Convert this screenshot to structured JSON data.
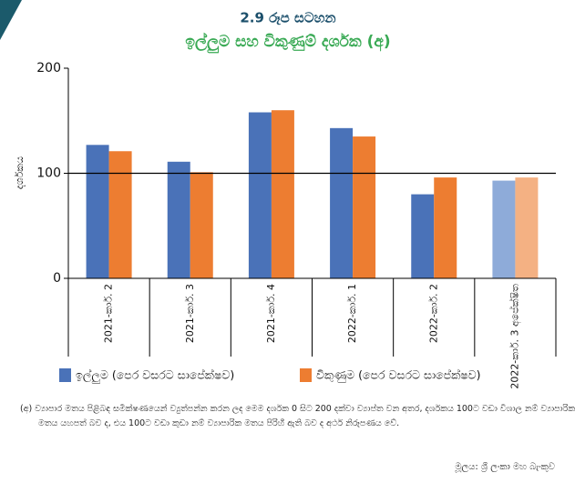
{
  "chart_data": {
    "type": "bar",
    "title": "2.9 රූප සටහන",
    "subtitle": "ඉල්ලුම සහ විකුණුම් දර්ශක (අ)",
    "y_label": "දර්ශකය",
    "categories": [
      "2021-කාර්. 2",
      "2021-කාර්. 3",
      "2021-කාර්. 4",
      "2022-කාර්. 1",
      "2022-කාර්. 2",
      "2022-කාර්. 3 අපේක්ෂිත"
    ],
    "series": [
      {
        "name": "ඉල්ලුම (පෙර වසරට සාපේක්ෂව)",
        "color": "#4a72b8",
        "point_colors": [
          "#4a72b8",
          "#4a72b8",
          "#4a72b8",
          "#4a72b8",
          "#4a72b8",
          "#8eabd9"
        ],
        "values": [
          127,
          111,
          158,
          143,
          80,
          93
        ]
      },
      {
        "name": "විකුණුම (පෙර වසරට සාපේක්ෂව)",
        "color": "#ed7d31",
        "point_colors": [
          "#ed7d31",
          "#ed7d31",
          "#ed7d31",
          "#ed7d31",
          "#ed7d31",
          "#f4b183"
        ],
        "values": [
          121,
          101,
          160,
          135,
          96,
          96
        ]
      }
    ],
    "ylim": [
      0,
      200
    ],
    "yticks": [
      0,
      100,
      200
    ],
    "reference_line": 100,
    "legend": "bottom",
    "footnote": "(අ) ව්‍යාපාර මතය පිළිබඳ සමීක්ෂණයෙන් ව්‍යුත්පන්න කරන ලද මෙම දර්ශක 0 සිට 200 දක්වා ව්‍යාප්ත වන අතර, දර්ශකය 100ට වඩා විශාල නම් ව්‍යාපාරික මතය යහපත් බව ද, එය 100ට වඩා කුඩා නම් ව්‍යාපාරික මතය පිරිහී ඇති බව ද අර්ථ නිරූපණය වේ.",
    "source": "මූලය: ශ්‍රී ලංකා මහ බැංකුව"
  }
}
